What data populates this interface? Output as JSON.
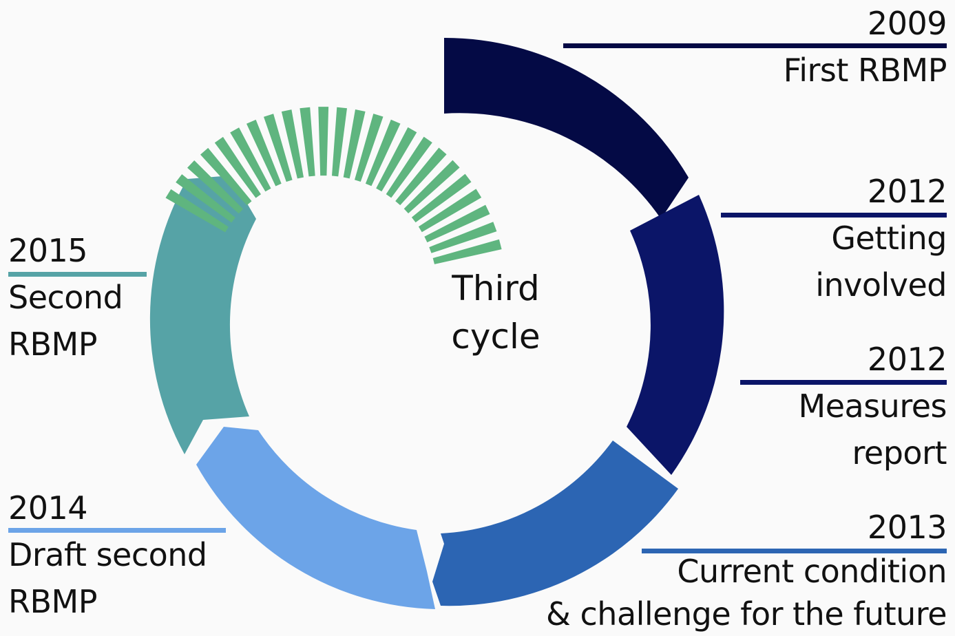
{
  "colors": {
    "background": "#fafafa",
    "first_rbmp": "#040a45",
    "getting_involved": "#0b1568",
    "measures_report": "#0b1568",
    "current_condition": "#2c65b3",
    "draft_second": "#6ca4e8",
    "second_rbmp": "#56a3a6",
    "third_cycle": "#5fb57f"
  },
  "center": {
    "line1": "Third",
    "line2": "cycle"
  },
  "stages": {
    "first_rbmp": {
      "year": "2009",
      "text1": "First RBMP"
    },
    "getting_involved": {
      "year": "2012",
      "text1": "Getting",
      "text2": "involved"
    },
    "measures_report": {
      "year": "2012",
      "text1": "Measures",
      "text2": "report"
    },
    "current_condition": {
      "year": "2013",
      "text1": "Current condition",
      "text2": "& challenge for the future"
    },
    "draft_second": {
      "year": "2014",
      "text1": "Draft second",
      "text2": "RBMP"
    },
    "second_rbmp": {
      "year": "2015",
      "text1": "Second",
      "text2": "RBMP"
    }
  }
}
